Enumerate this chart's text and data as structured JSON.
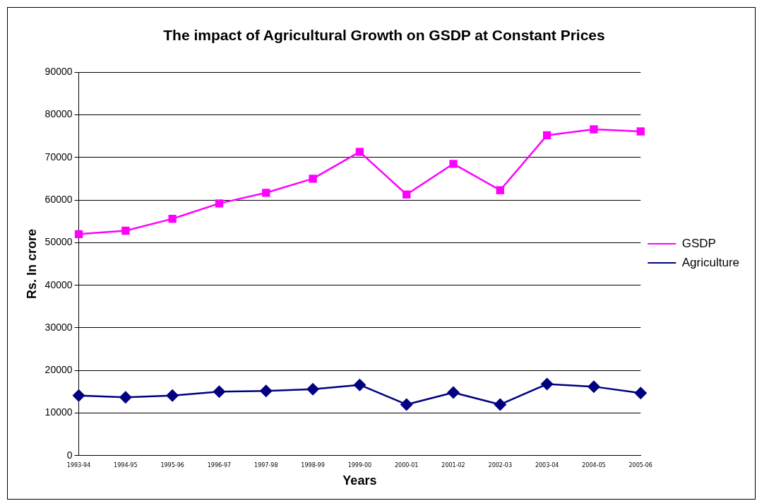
{
  "chart_data": {
    "type": "line",
    "title": "The impact of Agricultural Growth on GSDP at Constant Prices",
    "xlabel": "Years",
    "ylabel": "Rs. In crore",
    "categories": [
      "1993-94",
      "1994-95",
      "1995-96",
      "1996-97",
      "1997-98",
      "1998-99",
      "1999-00",
      "2000-01",
      "2001-02",
      "2002-03",
      "2003-04",
      "2004-05",
      "2005-06"
    ],
    "series": [
      {
        "name": "GSDP",
        "color": "#ff00ff",
        "marker": "square",
        "values": [
          52000,
          52800,
          55600,
          59200,
          61700,
          65000,
          71300,
          61300,
          68500,
          62300,
          75200,
          76600,
          76100
        ]
      },
      {
        "name": "Agriculture",
        "color": "#000080",
        "marker": "diamond",
        "values": [
          14100,
          13700,
          14100,
          15000,
          15200,
          15600,
          16600,
          12000,
          14800,
          12000,
          16800,
          16200,
          14700
        ]
      }
    ],
    "ylim": [
      0,
      90000
    ],
    "yticks": [
      0,
      10000,
      20000,
      30000,
      40000,
      50000,
      60000,
      70000,
      80000,
      90000
    ],
    "grid": "y",
    "legend": "right",
    "line_style": "solid"
  }
}
